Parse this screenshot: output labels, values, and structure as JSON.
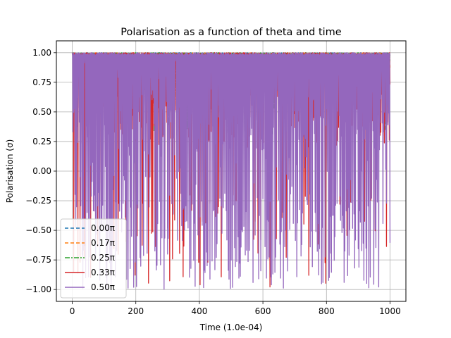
{
  "chart_data": {
    "type": "line",
    "title": "Polarisation as a function of theta and time",
    "xlabel": "Time (1.0e-04)",
    "ylabel": "Polarisation (σ)",
    "xlim": [
      -50,
      1050
    ],
    "ylim": [
      -1.1,
      1.1
    ],
    "xticks": [
      0,
      200,
      400,
      600,
      800,
      1000
    ],
    "xtick_labels": [
      "0",
      "200",
      "400",
      "600",
      "800",
      "1000"
    ],
    "yticks": [
      -1.0,
      -0.75,
      -0.5,
      -0.25,
      0.0,
      0.25,
      0.5,
      0.75,
      1.0
    ],
    "ytick_labels": [
      "−1.00",
      "−0.75",
      "−0.50",
      "−0.25",
      "0.00",
      "0.25",
      "0.50",
      "0.75",
      "1.00"
    ],
    "grid": true,
    "legend_position": "lower-left",
    "x_range": [
      0,
      1000
    ],
    "series": [
      {
        "name": "0.00π",
        "color": "#1f77b4",
        "dash": "dashed",
        "typical_min": 0.97,
        "dip_min": 0.93
      },
      {
        "name": "0.17π",
        "color": "#ff7f0e",
        "dash": "dashed",
        "typical_min": 0.9,
        "dip_min": 0.8
      },
      {
        "name": "0.25π",
        "color": "#2ca02c",
        "dash": "dashdot",
        "typical_min": 0.8,
        "dip_min": 0.3
      },
      {
        "name": "0.33π",
        "color": "#d62728",
        "dash": "solid",
        "typical_min": 0.2,
        "dip_min": -1.0
      },
      {
        "name": "0.50π",
        "color": "#9467bd",
        "dash": "solid",
        "typical_min": -1.0,
        "dip_min": -1.0
      }
    ]
  }
}
